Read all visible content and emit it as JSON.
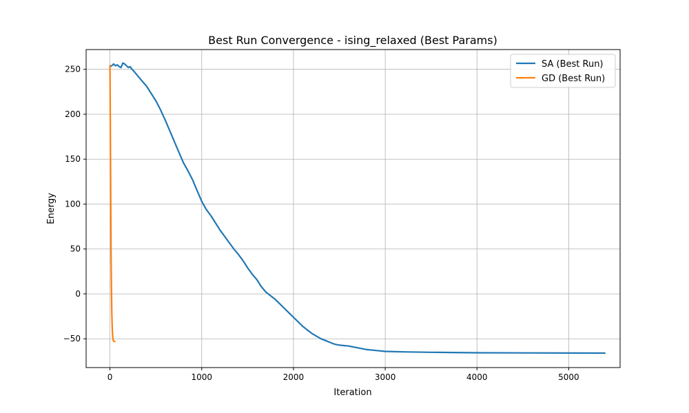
{
  "chart_data": {
    "type": "line",
    "title": "Best Run Convergence - ising_relaxed (Best Params)",
    "xlabel": "Iteration",
    "ylabel": "Energy",
    "xlim": [
      -260,
      5560
    ],
    "ylim": [
      -82,
      272
    ],
    "xticks": [
      0,
      1000,
      2000,
      3000,
      4000,
      5000
    ],
    "yticks": [
      -50,
      0,
      50,
      100,
      150,
      200,
      250
    ],
    "grid": true,
    "legend_position": "top-right",
    "series": [
      {
        "name": "SA (Best Run)",
        "color": "#1f77b4",
        "points": [
          [
            0,
            253
          ],
          [
            20,
            254
          ],
          [
            40,
            256
          ],
          [
            60,
            254
          ],
          [
            80,
            255
          ],
          [
            100,
            253
          ],
          [
            120,
            252
          ],
          [
            140,
            257
          ],
          [
            160,
            256
          ],
          [
            180,
            254
          ],
          [
            200,
            252
          ],
          [
            220,
            253
          ],
          [
            240,
            250
          ],
          [
            260,
            248
          ],
          [
            300,
            243
          ],
          [
            350,
            237
          ],
          [
            400,
            231
          ],
          [
            450,
            223
          ],
          [
            500,
            215
          ],
          [
            550,
            205
          ],
          [
            600,
            194
          ],
          [
            650,
            182
          ],
          [
            700,
            170
          ],
          [
            750,
            158
          ],
          [
            800,
            146
          ],
          [
            850,
            137
          ],
          [
            900,
            127
          ],
          [
            950,
            115
          ],
          [
            1000,
            103
          ],
          [
            1050,
            94
          ],
          [
            1100,
            87
          ],
          [
            1150,
            79
          ],
          [
            1200,
            71
          ],
          [
            1250,
            64
          ],
          [
            1300,
            57
          ],
          [
            1350,
            50
          ],
          [
            1400,
            44
          ],
          [
            1450,
            37
          ],
          [
            1500,
            29
          ],
          [
            1550,
            22
          ],
          [
            1600,
            16
          ],
          [
            1650,
            8
          ],
          [
            1700,
            2
          ],
          [
            1750,
            -2
          ],
          [
            1800,
            -6
          ],
          [
            1850,
            -11
          ],
          [
            1900,
            -16
          ],
          [
            1950,
            -21
          ],
          [
            2000,
            -26
          ],
          [
            2050,
            -31
          ],
          [
            2100,
            -36
          ],
          [
            2150,
            -40
          ],
          [
            2200,
            -44
          ],
          [
            2250,
            -47
          ],
          [
            2300,
            -50
          ],
          [
            2350,
            -52
          ],
          [
            2400,
            -54
          ],
          [
            2450,
            -56
          ],
          [
            2500,
            -57
          ],
          [
            2600,
            -58
          ],
          [
            2700,
            -60
          ],
          [
            2800,
            -62
          ],
          [
            2900,
            -63
          ],
          [
            3000,
            -64
          ],
          [
            3200,
            -64.5
          ],
          [
            3500,
            -65
          ],
          [
            4000,
            -65.5
          ],
          [
            4500,
            -65.7
          ],
          [
            5000,
            -65.8
          ],
          [
            5400,
            -65.9
          ]
        ]
      },
      {
        "name": "GD (Best Run)",
        "color": "#ff7f0e",
        "points": [
          [
            0,
            255
          ],
          [
            3,
            205
          ],
          [
            6,
            150
          ],
          [
            9,
            95
          ],
          [
            12,
            45
          ],
          [
            16,
            5
          ],
          [
            20,
            -22
          ],
          [
            25,
            -40
          ],
          [
            30,
            -48
          ],
          [
            36,
            -52
          ],
          [
            45,
            -53
          ],
          [
            60,
            -53
          ]
        ]
      }
    ]
  }
}
